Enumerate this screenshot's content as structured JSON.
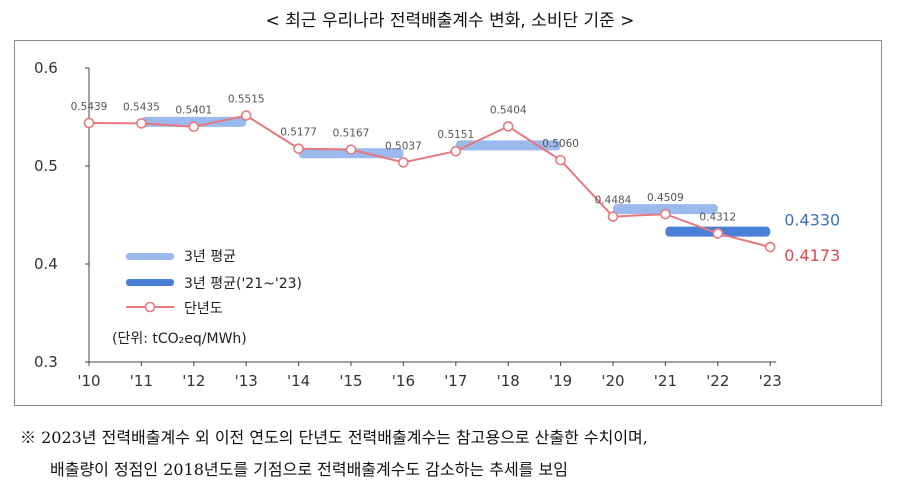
{
  "title": "< 최근 우리나라 전력배출계수 변화, 소비단 기준 >",
  "colors": {
    "avg3": "#9ab9ec",
    "avg3_recent": "#4a7fd8",
    "annual": "#e8777f",
    "blue_text": "#3a6fc4",
    "red_text": "#e0454f"
  },
  "chart_data": {
    "type": "line",
    "x": [
      "'10",
      "'11",
      "'12",
      "'13",
      "'14",
      "'15",
      "'16",
      "'17",
      "'18",
      "'19",
      "'20",
      "'21",
      "'22",
      "'23"
    ],
    "ylim": [
      0.3,
      0.6
    ],
    "yticks": [
      "0.3",
      "0.4",
      "0.5",
      "0.6"
    ],
    "series": [
      {
        "name": "단년도",
        "values": [
          0.5439,
          0.5435,
          0.5401,
          0.5515,
          0.5177,
          0.5167,
          0.5037,
          0.5151,
          0.5404,
          0.506,
          0.4484,
          0.4509,
          0.4312,
          0.4173
        ],
        "labels": [
          "0.5439",
          "0.5435",
          "0.5401",
          "0.5515",
          "0.5177",
          "0.5167",
          "0.5037",
          "0.5151",
          "0.5404",
          "0.5060",
          "0.4484",
          "0.4509",
          "0.4312",
          ""
        ]
      }
    ],
    "avg3_segments": [
      {
        "from": "'11",
        "to": "'13",
        "value": 0.545
      },
      {
        "from": "'14",
        "to": "'16",
        "value": 0.513
      },
      {
        "from": "'17",
        "to": "'19",
        "value": 0.521
      },
      {
        "from": "'20",
        "to": "'22",
        "value": 0.456
      }
    ],
    "avg3_recent_segment": {
      "from": "'21",
      "to": "'23",
      "value": 0.433
    },
    "end_labels": {
      "avg3_recent": "0.4330",
      "annual_last": "0.4173"
    },
    "legend": {
      "avg3": "3년 평균",
      "avg3_recent": "3년 평균('21~'23)",
      "annual": "단년도",
      "placement": "left-middle"
    },
    "unit": "(단위: tCO₂eq/MWh)",
    "grid": false
  },
  "notes": {
    "line1": "※ 2023년 전력배출계수 외 이전 연도의 단년도 전력배출계수는 참고용으로 산출한 수치이며,",
    "line2": "배출량이 정점인 2018년도를 기점으로 전력배출계수도 감소하는 추세를 보임"
  }
}
